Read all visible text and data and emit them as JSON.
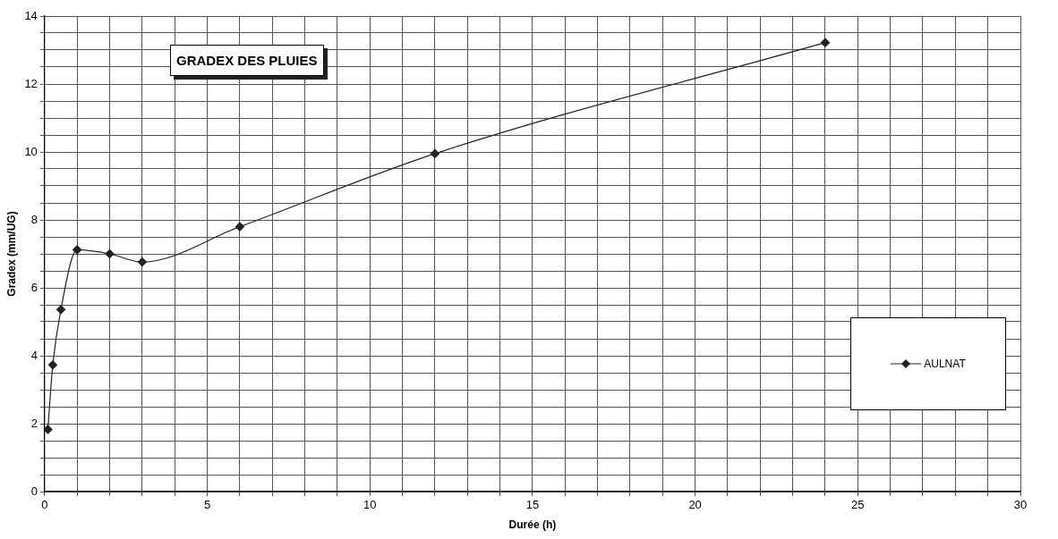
{
  "chart_data": {
    "type": "line",
    "title": "GRADEX DES PLUIES",
    "xlabel": "Durée (h)",
    "ylabel": "Gradex (mm/UG)",
    "x": [
      0.1,
      0.25,
      0.5,
      1,
      2,
      3,
      6,
      12,
      24
    ],
    "series": [
      {
        "name": "AULNAT",
        "color": "#222222",
        "values": [
          1.83,
          3.73,
          5.36,
          7.12,
          7.0,
          6.76,
          7.8,
          9.95,
          13.22
        ]
      }
    ],
    "xlim": [
      0,
      30
    ],
    "xticks": [
      0,
      {
        "value": 1,
        "label": null
      },
      {
        "value": 2,
        "label": null
      },
      {
        "value": 3,
        "label": null
      },
      {
        "value": 4,
        "label": null
      },
      5,
      {
        "value": 6,
        "label": null
      },
      {
        "value": 7,
        "label": null
      },
      {
        "value": 8,
        "label": null
      },
      {
        "value": 9,
        "label": null
      },
      10,
      {
        "value": 11,
        "label": null
      },
      {
        "value": 12,
        "label": null
      },
      {
        "value": 13,
        "label": null
      },
      {
        "value": 14,
        "label": null
      },
      15,
      {
        "value": 16,
        "label": null
      },
      {
        "value": 17,
        "label": null
      },
      {
        "value": 18,
        "label": null
      },
      {
        "value": 19,
        "label": null
      },
      20,
      {
        "value": 21,
        "label": null
      },
      {
        "value": 22,
        "label": null
      },
      {
        "value": 23,
        "label": null
      },
      {
        "value": 24,
        "label": null
      },
      25,
      {
        "value": 26,
        "label": null
      },
      {
        "value": 27,
        "label": null
      },
      {
        "value": 28,
        "label": null
      },
      {
        "value": 29,
        "label": null
      },
      30
    ],
    "ylim": [
      0,
      14
    ],
    "yticks": [
      0,
      {
        "value": 0.5,
        "label": null
      },
      {
        "value": 1,
        "label": null
      },
      {
        "value": 1.5,
        "label": null
      },
      2,
      {
        "value": 2.5,
        "label": null
      },
      {
        "value": 3,
        "label": null
      },
      {
        "value": 3.5,
        "label": null
      },
      4,
      {
        "value": 4.5,
        "label": null
      },
      {
        "value": 5,
        "label": null
      },
      {
        "value": 5.5,
        "label": null
      },
      6,
      {
        "value": 6.5,
        "label": null
      },
      {
        "value": 7,
        "label": null
      },
      {
        "value": 7.5,
        "label": null
      },
      8,
      {
        "value": 8.5,
        "label": null
      },
      {
        "value": 9,
        "label": null
      },
      {
        "value": 9.5,
        "label": null
      },
      10,
      {
        "value": 10.5,
        "label": null
      },
      {
        "value": 11,
        "label": null
      },
      {
        "value": 11.5,
        "label": null
      },
      12,
      {
        "value": 12.5,
        "label": null
      },
      {
        "value": 13,
        "label": null
      },
      {
        "value": 13.5,
        "label": null
      },
      14
    ],
    "grid": true,
    "legend": "right",
    "marker": "diamond",
    "line_style": "solid"
  }
}
